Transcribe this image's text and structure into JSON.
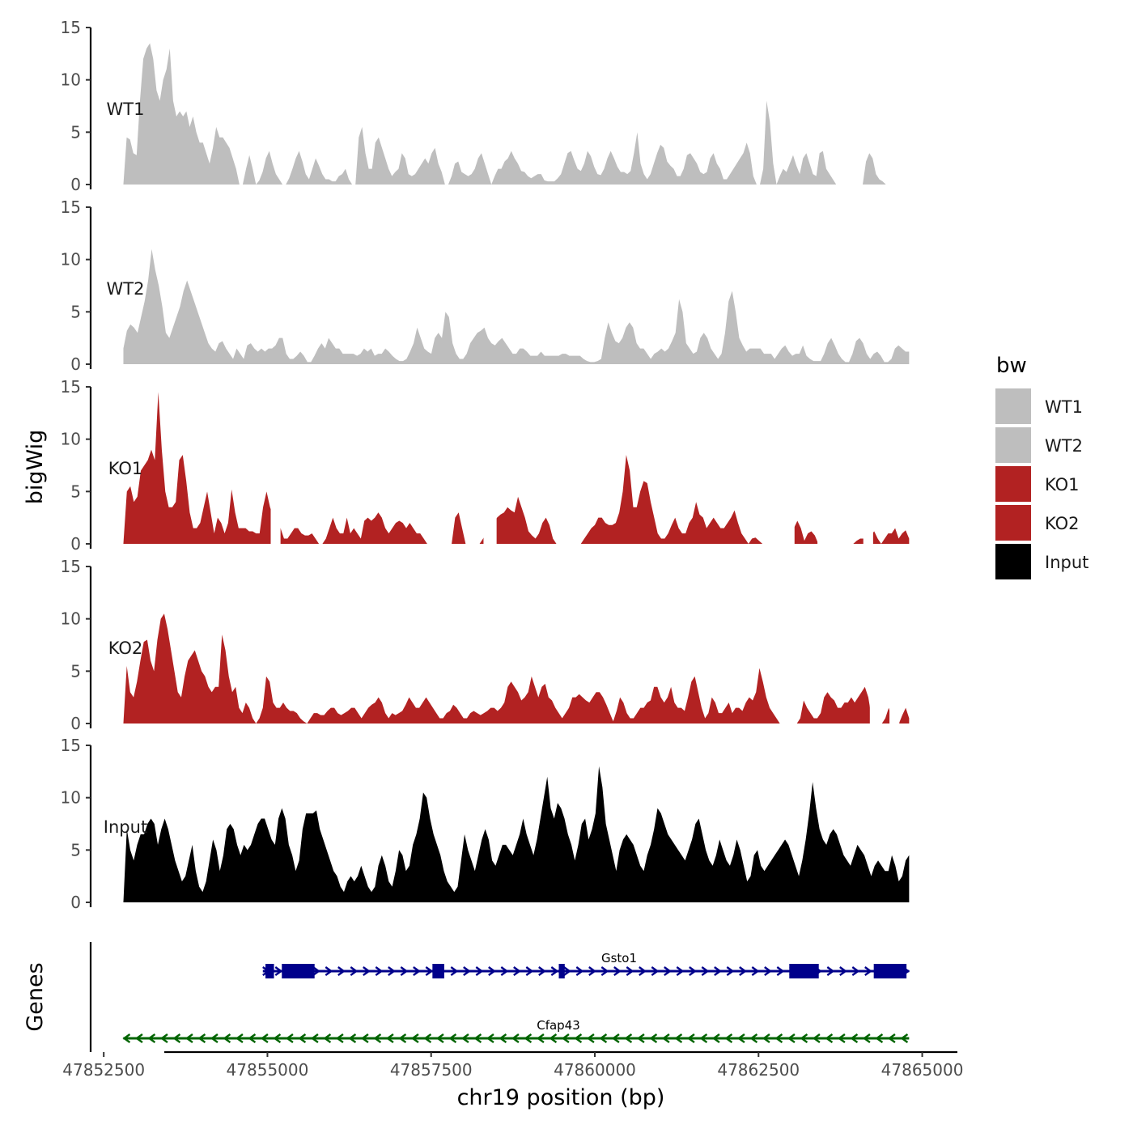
{
  "chart_data": {
    "type": "area",
    "title": "",
    "chromosome": "chr19",
    "xlabel": "chr19 position (bp)",
    "ylabel": "bigWig",
    "genes_label": "Genes",
    "xlim": [
      47852300,
      47865500
    ],
    "x_ticks": [
      47852500,
      47855000,
      47857500,
      47860000,
      47862500,
      47865000
    ],
    "x_tick_labels": [
      "47852500",
      "47855000",
      "47857500",
      "47860000",
      "47862500",
      "47865000"
    ],
    "ylim": [
      0,
      15
    ],
    "y_ticks": [
      0,
      5,
      10,
      15
    ],
    "y_tick_labels": [
      "0",
      "5",
      "10",
      "15"
    ],
    "legend": {
      "title": "bw",
      "position": "right",
      "entries": [
        {
          "label": "WT1",
          "color": "#bebebe"
        },
        {
          "label": "WT2",
          "color": "#bebebe"
        },
        {
          "label": "KO1",
          "color": "#b22222"
        },
        {
          "label": "KO2",
          "color": "#b22222"
        },
        {
          "label": "Input",
          "color": "#000000"
        }
      ]
    },
    "series": [
      {
        "name": "WT1",
        "color": "#bebebe",
        "x_start": 47852800,
        "x_end": 47864800,
        "values": [
          0,
          4.5,
          4.3,
          3,
          2.8,
          8,
          12,
          13,
          13.5,
          12,
          9,
          8,
          10,
          11,
          13,
          8,
          6.5,
          7,
          6.5,
          7,
          5.5,
          6.5,
          5,
          4,
          4,
          3,
          2,
          3.5,
          5.5,
          4.5,
          4.5,
          4,
          3.5,
          2.5,
          1.5,
          0,
          0,
          1.5,
          2.8,
          1.5,
          0,
          0.4,
          1.2,
          2.5,
          3.2,
          2,
          1,
          0.5,
          0,
          0,
          0.6,
          1.5,
          2.5,
          3.2,
          2.2,
          1,
          0.5,
          1.5,
          2.5,
          1.8,
          1,
          0.5,
          0.5,
          0.3,
          0.3,
          0.8,
          1,
          1.5,
          0.5,
          0,
          0,
          4.5,
          5.5,
          3,
          1.5,
          1.5,
          4,
          4.5,
          3.5,
          2.5,
          1.5,
          0.8,
          1.2,
          1.5,
          3,
          2.5,
          1,
          0.8,
          1,
          1.5,
          2,
          2.5,
          2,
          3,
          3.5,
          2,
          1.2,
          0,
          0,
          0.8,
          2,
          2.2,
          1.2,
          1,
          0.8,
          1,
          1.5,
          2.5,
          3,
          2,
          1,
          0,
          0.8,
          1.5,
          1.5,
          2.2,
          2.5,
          3.2,
          2.5,
          2,
          1.3,
          1.2,
          0.8,
          0.6,
          0.8,
          1,
          1,
          0.4,
          0.3,
          0.3,
          0.3,
          0.6,
          1,
          2,
          3,
          3.2,
          2.3,
          1.5,
          1.3,
          2,
          3.2,
          2.7,
          1.7,
          1,
          0.9,
          1.5,
          2.5,
          3.2,
          2.5,
          1.7,
          1.2,
          1.2,
          1,
          1.3,
          3,
          5,
          2,
          1,
          0.5,
          1,
          2,
          3,
          3.8,
          3.5,
          2.2,
          1.8,
          1.5,
          0.8,
          0.8,
          1.5,
          2.8,
          3,
          2.5,
          2,
          1.2,
          1,
          1.2,
          2.5,
          3,
          2,
          1.5,
          0.5,
          0.5,
          1,
          1.5,
          2,
          2.5,
          3,
          4,
          3,
          0.8,
          0,
          0,
          1.5,
          8,
          6,
          2,
          0,
          0.8,
          1.5,
          1.2,
          2,
          2.8,
          1.8,
          1,
          2.5,
          3,
          2,
          1,
          0.8,
          3,
          3.2,
          1.5,
          1,
          0.5,
          0,
          0,
          0,
          0,
          0,
          0,
          0,
          0,
          0,
          2.2,
          3,
          2.5,
          1,
          0.5,
          0.3,
          0,
          0,
          0,
          0,
          0,
          0.5,
          0.3,
          0
        ],
        "gaps": [
          [
            47864500,
            47864800
          ]
        ]
      },
      {
        "name": "WT2",
        "color": "#bebebe",
        "x_start": 47852800,
        "x_end": 47864800,
        "values": [
          1.5,
          3.2,
          3.8,
          3.5,
          3,
          4.5,
          6,
          8,
          11,
          9,
          7.5,
          5.5,
          3,
          2.5,
          3.5,
          4.5,
          5.5,
          7,
          8,
          7,
          6,
          5,
          4,
          3,
          2,
          1.5,
          1.2,
          2,
          2.2,
          1.5,
          1,
          0.5,
          1.5,
          1,
          0.5,
          1.8,
          2,
          1.5,
          1.2,
          1.5,
          1.2,
          1.5,
          1.5,
          1.8,
          2.5,
          2.5,
          1,
          0.5,
          0.5,
          0.8,
          1.2,
          0.8,
          0.2,
          0.2,
          0.8,
          1.5,
          2,
          1.5,
          2.5,
          2,
          1.5,
          1.5,
          1,
          1,
          1,
          1,
          0.8,
          1,
          1.5,
          1.2,
          1.5,
          0.8,
          1,
          1,
          1.5,
          1.2,
          0.8,
          0.5,
          0.3,
          0.3,
          0.5,
          1.2,
          2,
          3.5,
          2.5,
          1.5,
          1.2,
          1,
          2.5,
          3,
          2.5,
          5,
          4.5,
          2,
          1,
          0.5,
          0.5,
          1,
          2,
          2.5,
          3,
          3.2,
          3.5,
          2.5,
          2,
          1.8,
          2.2,
          2.5,
          2,
          1.5,
          1,
          1,
          1.5,
          1.5,
          1.2,
          0.8,
          0.8,
          0.8,
          1.2,
          0.8,
          0.8,
          0.8,
          0.8,
          0.8,
          1,
          1,
          0.8,
          0.8,
          0.8,
          0.8,
          0.5,
          0.3,
          0.2,
          0.2,
          0.3,
          0.5,
          2.5,
          4,
          3,
          2.2,
          2,
          2.5,
          3.5,
          4,
          3.5,
          2,
          1.5,
          1.5,
          1,
          0.5,
          1,
          1.2,
          1.5,
          1.2,
          1.5,
          2.2,
          3,
          6.2,
          5,
          2,
          1.5,
          1,
          1.2,
          2.5,
          3,
          2.5,
          1.5,
          1,
          0.5,
          1,
          3,
          6,
          7,
          5,
          2.5,
          1.8,
          1.2,
          1.5,
          1.5,
          1.5,
          1.5,
          1,
          1,
          1,
          0.5,
          1,
          1.5,
          1.8,
          1.2,
          0.8,
          1,
          1,
          1.8,
          0.8,
          0.5,
          0.3,
          0.3,
          0.3,
          1,
          2,
          2.5,
          1.8,
          1,
          0.5,
          0.2,
          0.2,
          1,
          2.2,
          2.5,
          2,
          1,
          0.5,
          1,
          1.2,
          0.8,
          0.2,
          0.2,
          0.5,
          1.5,
          1.8,
          1.5,
          1.2,
          1.2
        ],
        "gaps": []
      },
      {
        "name": "KO1",
        "color": "#b22222",
        "x_start": 47852800,
        "x_end": 47864800,
        "values": [
          0,
          5,
          5.5,
          4,
          4.5,
          7,
          7.5,
          8,
          9,
          8,
          14.5,
          9,
          5,
          3.5,
          3.5,
          4,
          8,
          8.5,
          6,
          3,
          1.5,
          1.5,
          2,
          3.5,
          5,
          3,
          1,
          2.5,
          2,
          1,
          2,
          5.2,
          3,
          1.5,
          1.5,
          1.5,
          1.2,
          1.2,
          1,
          1,
          3.5,
          5,
          3.5,
          2.5,
          2,
          1.5,
          0.5,
          0.5,
          1,
          1.5,
          1.5,
          1,
          0.8,
          0.8,
          1,
          0.5,
          0,
          0,
          0.5,
          1.5,
          2.5,
          1.5,
          1,
          1,
          2.5,
          1,
          1.5,
          1,
          0.5,
          2.2,
          2.5,
          2.2,
          2.5,
          3,
          2.5,
          1.5,
          1,
          1.5,
          2,
          2.2,
          2,
          1.5,
          2,
          1.5,
          1,
          1,
          0.5,
          0,
          0,
          0,
          0,
          0,
          0,
          0,
          0,
          2.5,
          3,
          1.5,
          0,
          0,
          0,
          0,
          0,
          0.5,
          1.2,
          1.5,
          2,
          2.5,
          2.8,
          3,
          3.5,
          3.2,
          3,
          4.5,
          3.5,
          2.5,
          1.2,
          0.8,
          0.5,
          1,
          2,
          2.5,
          1.8,
          0.5,
          0,
          0,
          0,
          0,
          0,
          0,
          0,
          0,
          0.5,
          1,
          1.5,
          1.8,
          2.5,
          2.5,
          2,
          1.8,
          1.8,
          2,
          3,
          5,
          8.5,
          7,
          3.5,
          3.5,
          5,
          6,
          5.8,
          4,
          2.5,
          1,
          0.5,
          0.5,
          1,
          1.8,
          2.5,
          1.5,
          1,
          1,
          2,
          2.5,
          4,
          2.8,
          2.5,
          1.5,
          2,
          2.5,
          2,
          1.5,
          1.5,
          2,
          2.5,
          3.2,
          2,
          1,
          0.5,
          0,
          0.5,
          0.6,
          0.3,
          0,
          0,
          0,
          0,
          0,
          0,
          0,
          0,
          0,
          1.5,
          2.2,
          1.5,
          0.3,
          1,
          1.2,
          0.8,
          0,
          0,
          0,
          0,
          0,
          0,
          0,
          0,
          0,
          0,
          0,
          0.3,
          0.5,
          0.5,
          0.5,
          0.8,
          1.2,
          0.5,
          0,
          0.5,
          1,
          1,
          1.5,
          0.5,
          1,
          1.3,
          0.5
        ],
        "gaps": [
          [
            47855050,
            47855200
          ],
          [
            47857450,
            47857600
          ],
          [
            47858300,
            47858500
          ],
          [
            47859450,
            47859650
          ],
          [
            47862600,
            47863050
          ],
          [
            47863400,
            47863650
          ],
          [
            47864100,
            47864250
          ]
        ]
      },
      {
        "name": "KO2",
        "color": "#b22222",
        "x_start": 47852800,
        "x_end": 47864800,
        "values": [
          0,
          5.5,
          3,
          2.5,
          4,
          6,
          7.8,
          8,
          6,
          5,
          8,
          10,
          10.5,
          9,
          7,
          5,
          3,
          2.5,
          4.5,
          6,
          6.5,
          7,
          6,
          5,
          4.5,
          3.5,
          3,
          3.5,
          3.5,
          8.5,
          7,
          4.5,
          3,
          3.5,
          1.5,
          1,
          2,
          1.5,
          0.5,
          0,
          0.5,
          1.5,
          4.5,
          4,
          2,
          1.5,
          1.5,
          2,
          1.5,
          1.2,
          1.2,
          1,
          0.5,
          0.2,
          0,
          0.5,
          1,
          1,
          0.8,
          0.8,
          1.2,
          1.5,
          1.5,
          1,
          0.8,
          1,
          1.2,
          1.5,
          1.5,
          1,
          0.5,
          1,
          1.5,
          1.8,
          2,
          2.5,
          2,
          1,
          0.5,
          1,
          0.8,
          1,
          1.2,
          1.8,
          2.5,
          2,
          1.5,
          1.5,
          2,
          2.5,
          2,
          1.5,
          1,
          0.5,
          0.5,
          1,
          1.2,
          1.8,
          1.5,
          1,
          0.5,
          0.5,
          1,
          1.2,
          1,
          0.8,
          1,
          1.2,
          1.5,
          1.5,
          1.2,
          1.5,
          2,
          3.5,
          4,
          3.5,
          3,
          2.2,
          2.5,
          3,
          4.5,
          3.5,
          2.5,
          3.5,
          3.8,
          2.5,
          2.2,
          1.5,
          1,
          0.5,
          1,
          1.5,
          2.5,
          2.5,
          2.8,
          2.5,
          2.2,
          2,
          2.5,
          3,
          3,
          2.5,
          1.8,
          1,
          0.2,
          1.2,
          2.5,
          2,
          1,
          0.5,
          0.5,
          1,
          1.5,
          1.5,
          2,
          2.2,
          3.5,
          3.5,
          2.5,
          2,
          2.5,
          3.5,
          2,
          1.5,
          1.5,
          1.2,
          2.5,
          4,
          4.5,
          3,
          1.5,
          0.5,
          1,
          2.5,
          2,
          1,
          1,
          1.5,
          2,
          1,
          1.5,
          1.5,
          1.2,
          2,
          2.5,
          2.2,
          3,
          5.3,
          4,
          2.5,
          1.5,
          1,
          0.5,
          0,
          0,
          0,
          0,
          0,
          0,
          0.5,
          2.2,
          1.5,
          1,
          0.5,
          0.5,
          1,
          2.5,
          3,
          2.5,
          2.2,
          1.5,
          1.5,
          2,
          2,
          2.5,
          2,
          2.5,
          3,
          3.5,
          2.5,
          0.5,
          0,
          0,
          0,
          0.5,
          1.5,
          0.5,
          0,
          0,
          0.8,
          1.5,
          0.5
        ],
        "gaps": [
          [
            47864200,
            47864300
          ],
          [
            47864500,
            47864650
          ]
        ]
      },
      {
        "name": "Input",
        "color": "#000000",
        "x_start": 47852800,
        "x_end": 47864800,
        "values": [
          0,
          7,
          5,
          4,
          5.5,
          6.5,
          6.5,
          7.5,
          8,
          7.5,
          5.5,
          7,
          8,
          7,
          5.5,
          4,
          3,
          2,
          2.5,
          4,
          5.5,
          3,
          1.5,
          1,
          2,
          4,
          6,
          5,
          3,
          4.5,
          7,
          7.5,
          7,
          5.5,
          4.5,
          5.5,
          5,
          5.5,
          6.5,
          7.5,
          8,
          8,
          7,
          6,
          5.5,
          8,
          9,
          8,
          5.5,
          4.5,
          3,
          4,
          7,
          8.5,
          8.5,
          8.5,
          8.8,
          7,
          6,
          5,
          4,
          3,
          2.5,
          1.5,
          1,
          2,
          2.5,
          2,
          2.5,
          3.5,
          2.5,
          1.5,
          1,
          1.5,
          3.5,
          4.5,
          3.5,
          2,
          1.5,
          3,
          5,
          4.5,
          3,
          3.5,
          5.5,
          6.5,
          8,
          10.5,
          10,
          8,
          6.5,
          5.5,
          4.5,
          3,
          2,
          1.5,
          1,
          1.5,
          4,
          6.5,
          5,
          4,
          3,
          4.5,
          6,
          7,
          6,
          4,
          3.5,
          4.5,
          5.5,
          5.5,
          5,
          4.5,
          5.5,
          6.5,
          8,
          6.5,
          5.5,
          4.5,
          6,
          8,
          10,
          12,
          9,
          8,
          9.5,
          9,
          8,
          6.5,
          5.5,
          4,
          5.5,
          7.5,
          8,
          6,
          7,
          8.5,
          13,
          11,
          7.5,
          6,
          4.5,
          3,
          5,
          6,
          6.5,
          6,
          5.5,
          4.5,
          3.5,
          3,
          4.5,
          5.5,
          7,
          9,
          8.5,
          7.5,
          6.5,
          6,
          5.5,
          5,
          4.5,
          4,
          5,
          6,
          7.5,
          8,
          6.5,
          5,
          4,
          3.5,
          4.5,
          6,
          5,
          4,
          3.5,
          4.5,
          6,
          5,
          3.5,
          2,
          2.5,
          4.5,
          5,
          3.5,
          3,
          3.5,
          4,
          4.5,
          5,
          5.5,
          6,
          5.5,
          4.5,
          3.5,
          2.5,
          4,
          6,
          8.5,
          11.5,
          9,
          7,
          6,
          5.5,
          6.5,
          7,
          6.5,
          5.5,
          4.5,
          4,
          3.5,
          4.5,
          5.5,
          5,
          4.5,
          3.5,
          2.5,
          3.5,
          4,
          3.5,
          3,
          3,
          4.5,
          3.5,
          2,
          2.5,
          4,
          4.5
        ],
        "gaps": []
      }
    ],
    "genes": [
      {
        "name": "Gsto1",
        "color": "#00008b",
        "strand": "+",
        "start": 47854930,
        "end": 47864800,
        "exons": [
          [
            47854970,
            47855100
          ],
          [
            47855220,
            47855720
          ],
          [
            47857520,
            47857700
          ],
          [
            47859450,
            47859540
          ],
          [
            47862970,
            47863420
          ],
          [
            47864260,
            47864760
          ]
        ]
      },
      {
        "name": "Cfap43",
        "color": "#006400",
        "strand": "-",
        "start": 47852800,
        "end": 47864800,
        "exons": []
      }
    ]
  }
}
